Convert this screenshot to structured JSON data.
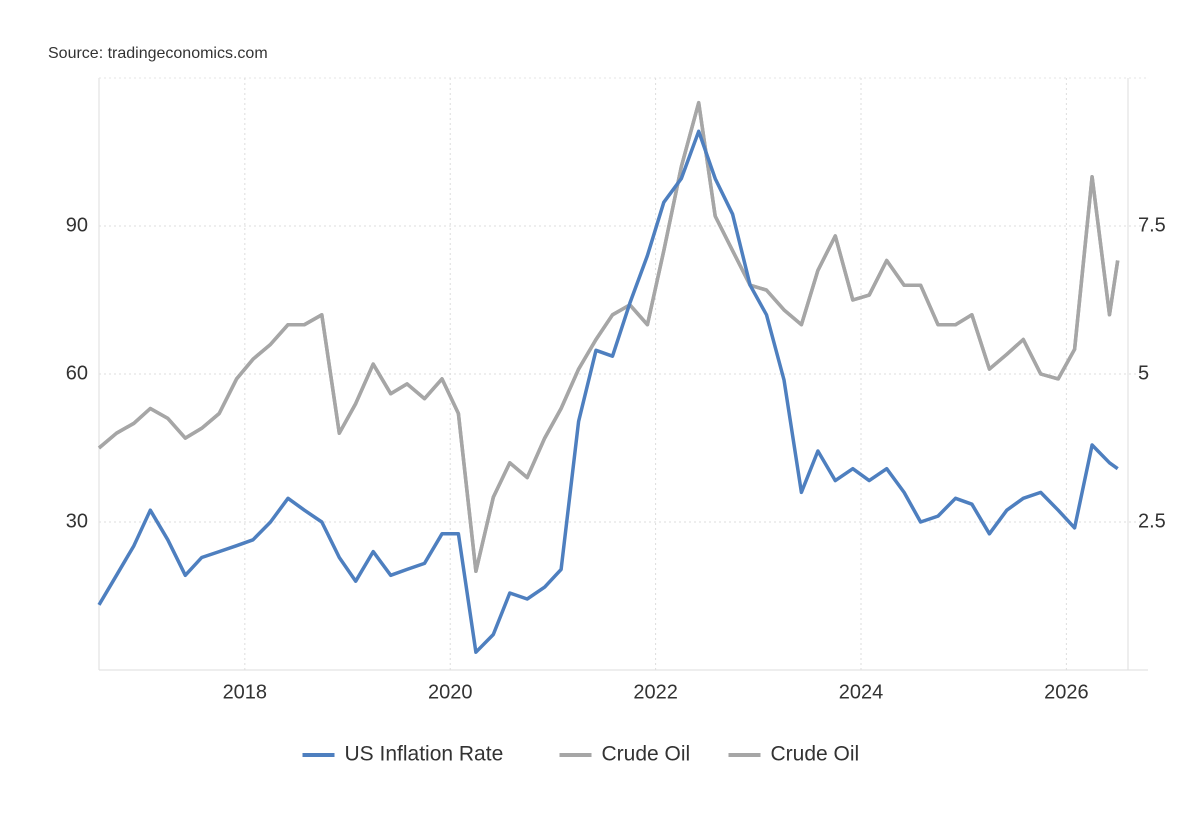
{
  "chart_data": {
    "type": "line",
    "source": "Source: tradingeconomics.com",
    "x": [
      2016.58,
      2016.75,
      2016.92,
      2017.08,
      2017.25,
      2017.42,
      2017.58,
      2017.75,
      2017.92,
      2018.08,
      2018.25,
      2018.42,
      2018.58,
      2018.75,
      2018.92,
      2019.08,
      2019.25,
      2019.42,
      2019.58,
      2019.75,
      2019.92,
      2020.08,
      2020.25,
      2020.42,
      2020.58,
      2020.75,
      2020.92,
      2021.08,
      2021.25,
      2021.42,
      2021.58,
      2021.75,
      2021.92,
      2022.08,
      2022.25,
      2022.42,
      2022.58,
      2022.75,
      2022.92,
      2023.08,
      2023.25,
      2023.42,
      2023.58,
      2023.75,
      2023.92,
      2024.08,
      2024.25,
      2024.42,
      2024.58,
      2024.75,
      2024.92,
      2025.08,
      2025.25,
      2025.42,
      2025.58,
      2025.75,
      2025.92,
      2026.08,
      2026.25,
      2026.42,
      2026.5
    ],
    "xlim": [
      2016.58,
      2026.6
    ],
    "xticks": [
      2018,
      2020,
      2022,
      2024,
      2026
    ],
    "ylim": [
      0,
      120
    ],
    "yticks": [
      30,
      60,
      90
    ],
    "y2lim": [
      0,
      10
    ],
    "y2ticks": [
      2.5,
      5,
      7.5
    ],
    "grid": true,
    "legend": "bottom",
    "series": [
      {
        "name": "US Inflation Rate",
        "color": "#4e7fbf",
        "axis": "y2",
        "values": [
          1.1,
          1.6,
          2.1,
          2.7,
          2.2,
          1.6,
          1.9,
          2.0,
          2.1,
          2.2,
          2.5,
          2.9,
          2.7,
          2.5,
          1.9,
          1.5,
          2.0,
          1.6,
          1.7,
          1.8,
          2.3,
          2.3,
          0.3,
          0.6,
          1.3,
          1.2,
          1.4,
          1.7,
          4.2,
          5.4,
          5.3,
          6.2,
          7.0,
          7.9,
          8.3,
          9.1,
          8.3,
          7.7,
          6.5,
          6.0,
          4.9,
          3.0,
          3.7,
          3.2,
          3.4,
          3.2,
          3.4,
          3.0,
          2.5,
          2.6,
          2.9,
          2.8,
          2.3,
          2.7,
          2.9,
          3.0,
          2.7,
          2.4,
          3.8,
          3.5,
          3.4
        ]
      },
      {
        "name": "Crude Oil",
        "color": "#a6a6a6",
        "values": [
          45,
          48,
          50,
          53,
          51,
          47,
          49,
          52,
          59,
          63,
          66,
          70,
          70,
          72,
          48,
          54,
          62,
          56,
          58,
          55,
          59,
          52,
          20,
          35,
          42,
          39,
          47,
          53,
          61,
          67,
          72,
          74,
          70,
          85,
          102,
          115,
          92,
          85,
          78,
          77,
          73,
          70,
          81,
          88,
          75,
          76,
          83,
          78,
          78,
          70,
          70,
          72,
          61,
          64,
          67,
          60,
          59,
          65,
          100,
          72,
          83
        ]
      },
      {
        "name": "Crude Oil",
        "color": "#a6a6a6",
        "values": [
          45,
          48,
          50,
          53,
          51,
          47,
          49,
          52,
          59,
          63,
          66,
          70,
          70,
          72,
          48,
          54,
          62,
          56,
          58,
          55,
          59,
          52,
          20,
          35,
          42,
          39,
          47,
          53,
          61,
          67,
          72,
          74,
          70,
          85,
          102,
          115,
          92,
          85,
          78,
          77,
          73,
          70,
          81,
          88,
          75,
          76,
          83,
          78,
          78,
          70,
          70,
          72,
          61,
          64,
          67,
          60,
          59,
          65,
          100,
          72,
          83
        ]
      }
    ]
  }
}
